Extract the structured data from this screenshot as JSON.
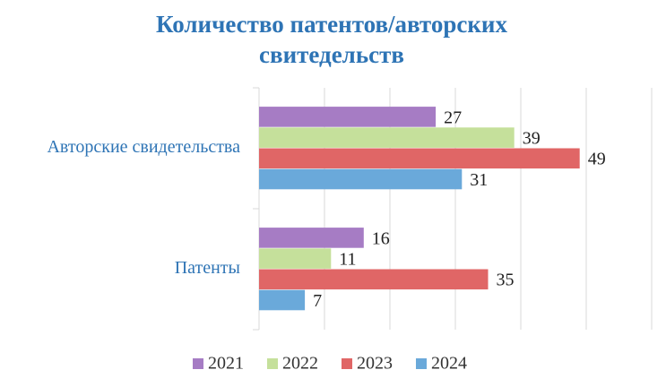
{
  "chart_data": {
    "type": "bar",
    "orientation": "horizontal",
    "title": [
      "Количество патентов/авторских",
      "свитедельств"
    ],
    "categories": [
      "Авторские свидетельства",
      "Патенты"
    ],
    "series": [
      {
        "name": "2021",
        "color": "#a67cc4",
        "values": [
          27,
          16
        ]
      },
      {
        "name": "2022",
        "color": "#c5e09b",
        "values": [
          39,
          11
        ]
      },
      {
        "name": "2023",
        "color": "#e06666",
        "values": [
          49,
          35
        ]
      },
      {
        "name": "2024",
        "color": "#6aa9da",
        "values": [
          31,
          7
        ]
      }
    ],
    "xlim": [
      0,
      60
    ],
    "xticks": [
      0,
      10,
      20,
      30,
      40,
      50,
      60
    ],
    "grid": true,
    "legend": "bottom"
  }
}
